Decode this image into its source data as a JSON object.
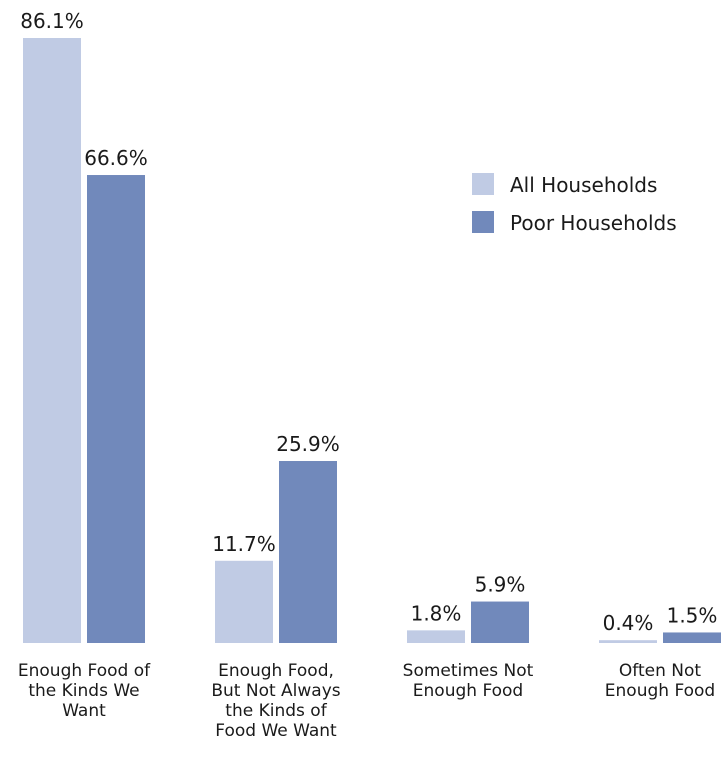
{
  "chart_data": {
    "type": "bar",
    "categories": [
      [
        "Enough Food of",
        "the Kinds We",
        "Want"
      ],
      [
        "Enough Food,",
        "But Not Always",
        "the Kinds of",
        "Food We Want"
      ],
      [
        "Sometimes Not",
        "Enough Food"
      ],
      [
        "Often Not",
        "Enough Food"
      ]
    ],
    "series": [
      {
        "name": "All Households",
        "values": [
          86.1,
          11.7,
          1.8,
          0.4
        ],
        "labels": [
          "86.1%",
          "11.7%",
          "1.8%",
          "0.4%"
        ],
        "color": "#c0cbe4"
      },
      {
        "name": "Poor Households",
        "values": [
          66.6,
          25.9,
          5.9,
          1.5
        ],
        "labels": [
          "66.6%",
          "25.9%",
          "5.9%",
          "1.5%"
        ],
        "color": "#7189bb"
      }
    ],
    "ylim": [
      0,
      86.1
    ],
    "legend_position": "top-right",
    "grid": false,
    "title": "",
    "xlabel": "",
    "ylabel": ""
  }
}
